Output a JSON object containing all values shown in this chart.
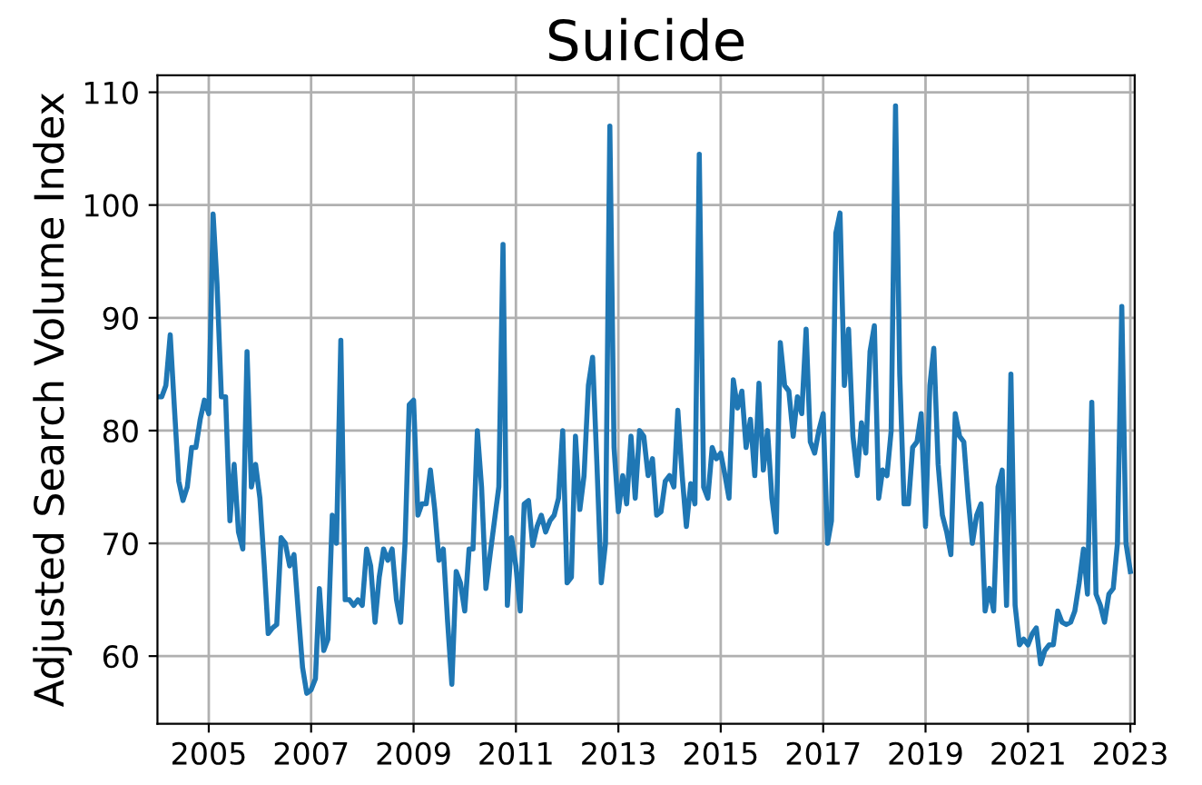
{
  "chart_data": {
    "type": "line",
    "title": "Suicide",
    "ylabel": "Adjusted Search Volume Index",
    "x": [
      "2004-01",
      "2004-02",
      "2004-03",
      "2004-04",
      "2004-05",
      "2004-06",
      "2004-07",
      "2004-08",
      "2004-09",
      "2004-10",
      "2004-11",
      "2004-12",
      "2005-01",
      "2005-02",
      "2005-03",
      "2005-04",
      "2005-05",
      "2005-06",
      "2005-07",
      "2005-08",
      "2005-09",
      "2005-10",
      "2005-11",
      "2005-12",
      "2006-01",
      "2006-02",
      "2006-03",
      "2006-04",
      "2006-05",
      "2006-06",
      "2006-07",
      "2006-08",
      "2006-09",
      "2006-10",
      "2006-11",
      "2006-12",
      "2007-01",
      "2007-02",
      "2007-03",
      "2007-04",
      "2007-05",
      "2007-06",
      "2007-07",
      "2007-08",
      "2007-09",
      "2007-10",
      "2007-11",
      "2007-12",
      "2008-01",
      "2008-02",
      "2008-03",
      "2008-04",
      "2008-05",
      "2008-06",
      "2008-07",
      "2008-08",
      "2008-09",
      "2008-10",
      "2008-11",
      "2008-12",
      "2009-01",
      "2009-02",
      "2009-03",
      "2009-04",
      "2009-05",
      "2009-06",
      "2009-07",
      "2009-08",
      "2009-09",
      "2009-10",
      "2009-11",
      "2009-12",
      "2010-01",
      "2010-02",
      "2010-03",
      "2010-04",
      "2010-05",
      "2010-06",
      "2010-07",
      "2010-08",
      "2010-09",
      "2010-10",
      "2010-11",
      "2010-12",
      "2011-01",
      "2011-02",
      "2011-03",
      "2011-04",
      "2011-05",
      "2011-06",
      "2011-07",
      "2011-08",
      "2011-09",
      "2011-10",
      "2011-11",
      "2011-12",
      "2012-01",
      "2012-02",
      "2012-03",
      "2012-04",
      "2012-05",
      "2012-06",
      "2012-07",
      "2012-08",
      "2012-09",
      "2012-10",
      "2012-11",
      "2012-12",
      "2013-01",
      "2013-02",
      "2013-03",
      "2013-04",
      "2013-05",
      "2013-06",
      "2013-07",
      "2013-08",
      "2013-09",
      "2013-10",
      "2013-11",
      "2013-12",
      "2014-01",
      "2014-02",
      "2014-03",
      "2014-04",
      "2014-05",
      "2014-06",
      "2014-07",
      "2014-08",
      "2014-09",
      "2014-10",
      "2014-11",
      "2014-12",
      "2015-01",
      "2015-02",
      "2015-03",
      "2015-04",
      "2015-05",
      "2015-06",
      "2015-07",
      "2015-08",
      "2015-09",
      "2015-10",
      "2015-11",
      "2015-12",
      "2016-01",
      "2016-02",
      "2016-03",
      "2016-04",
      "2016-05",
      "2016-06",
      "2016-07",
      "2016-08",
      "2016-09",
      "2016-10",
      "2016-11",
      "2016-12",
      "2017-01",
      "2017-02",
      "2017-03",
      "2017-04",
      "2017-05",
      "2017-06",
      "2017-07",
      "2017-08",
      "2017-09",
      "2017-10",
      "2017-11",
      "2017-12",
      "2018-01",
      "2018-02",
      "2018-03",
      "2018-04",
      "2018-05",
      "2018-06",
      "2018-07",
      "2018-08",
      "2018-09",
      "2018-10",
      "2018-11",
      "2018-12",
      "2019-01",
      "2019-02",
      "2019-03",
      "2019-04",
      "2019-05",
      "2019-06",
      "2019-07",
      "2019-08",
      "2019-09",
      "2019-10",
      "2019-11",
      "2019-12",
      "2020-01",
      "2020-02",
      "2020-03",
      "2020-04",
      "2020-05",
      "2020-06",
      "2020-07",
      "2020-08",
      "2020-09",
      "2020-10",
      "2020-11",
      "2020-12",
      "2021-01",
      "2021-02",
      "2021-03",
      "2021-04",
      "2021-05",
      "2021-06",
      "2021-07",
      "2021-08",
      "2021-09",
      "2021-10",
      "2021-11",
      "2021-12",
      "2022-01",
      "2022-02",
      "2022-03",
      "2022-04",
      "2022-05",
      "2022-06",
      "2022-07",
      "2022-08",
      "2022-09",
      "2022-10",
      "2022-11",
      "2022-12",
      "2023-01"
    ],
    "color": "#1f77b4",
    "values": [
      83,
      83,
      84,
      88.5,
      82,
      75.5,
      73.8,
      75,
      78.5,
      78.5,
      81,
      82.7,
      81.5,
      99.2,
      93,
      83,
      83,
      72,
      77,
      71,
      69.5,
      87,
      75,
      77,
      74,
      68,
      62,
      62.5,
      62.8,
      70.5,
      70,
      68,
      69,
      64,
      59,
      56.7,
      57,
      58,
      66,
      60.5,
      61.5,
      72.5,
      70,
      88,
      65,
      65,
      64.5,
      65,
      64.5,
      69.5,
      68,
      63,
      67,
      69.5,
      68.5,
      69.5,
      65,
      63,
      70,
      82.3,
      82.7,
      72.5,
      73.5,
      73.5,
      76.5,
      73,
      68.5,
      69.5,
      63,
      57.5,
      67.5,
      66.5,
      64,
      69.5,
      69.5,
      80,
      75,
      66,
      69,
      72,
      75,
      96.5,
      64.5,
      70.5,
      68,
      64,
      73.5,
      73.8,
      69.8,
      71.5,
      72.5,
      71,
      72,
      72.5,
      74,
      80,
      66.5,
      67,
      79.5,
      73,
      76,
      84,
      86.5,
      77,
      66.5,
      70,
      107,
      78.5,
      72.8,
      76,
      73.5,
      79.5,
      74,
      80,
      79.5,
      76,
      77.5,
      72.5,
      72.8,
      75.5,
      76,
      75,
      81.8,
      76,
      71.5,
      75.3,
      73.5,
      104.5,
      75,
      74,
      78.5,
      77.5,
      78,
      76,
      74,
      84.5,
      82,
      83.5,
      78.5,
      81,
      76,
      84.2,
      76.5,
      80,
      74,
      71,
      87.8,
      84,
      83.5,
      79.5,
      83,
      81.5,
      89,
      79,
      78,
      80,
      81.5,
      70,
      72,
      97.5,
      99.3,
      84,
      89,
      79.5,
      76,
      80.7,
      78,
      87,
      89.3,
      74,
      76.5,
      76,
      80,
      108.8,
      85,
      73.5,
      73.5,
      78.5,
      79,
      81.5,
      71.5,
      84,
      87.3,
      77,
      72.5,
      71,
      69,
      81.5,
      79.5,
      79,
      74,
      70,
      72.5,
      73.5,
      64,
      66,
      64,
      75,
      76.5,
      64.5,
      85,
      64.5,
      61,
      61.5,
      61,
      62,
      62.5,
      59.3,
      60.5,
      61,
      61,
      64,
      63,
      62.8,
      63,
      64,
      66.5,
      69.5,
      65.5,
      82.5,
      65.5,
      64.5,
      63,
      65.5,
      66,
      70,
      91,
      70,
      67.5
    ],
    "xlim": [
      "2004-01-01",
      "2023-02-01"
    ],
    "xticks": [
      "2005",
      "2007",
      "2009",
      "2011",
      "2013",
      "2015",
      "2017",
      "2019",
      "2021",
      "2023"
    ],
    "ylim": [
      54,
      111.5
    ],
    "yticks": [
      60,
      70,
      80,
      90,
      100,
      110
    ],
    "grid": true,
    "legend": false
  }
}
